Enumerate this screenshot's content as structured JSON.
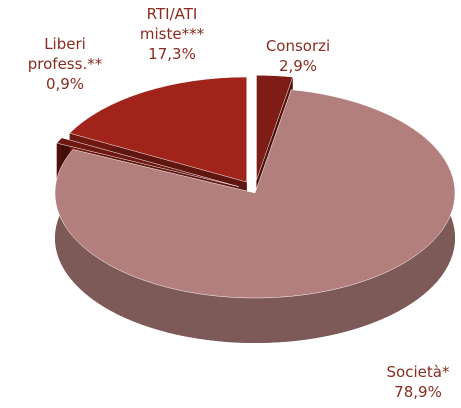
{
  "chart_data": {
    "type": "pie",
    "categories": [
      "Consorzi",
      "Società*",
      "Liberi profess.**",
      "RTI/ATI miste***"
    ],
    "values": [
      2.9,
      78.9,
      0.9,
      17.3
    ],
    "value_labels": [
      "2,9%",
      "78,9%",
      "0,9%",
      "17,3%"
    ],
    "colors": [
      "#7e1d16",
      "#b37f7d",
      "#6f1711",
      "#a0241a"
    ]
  }
}
